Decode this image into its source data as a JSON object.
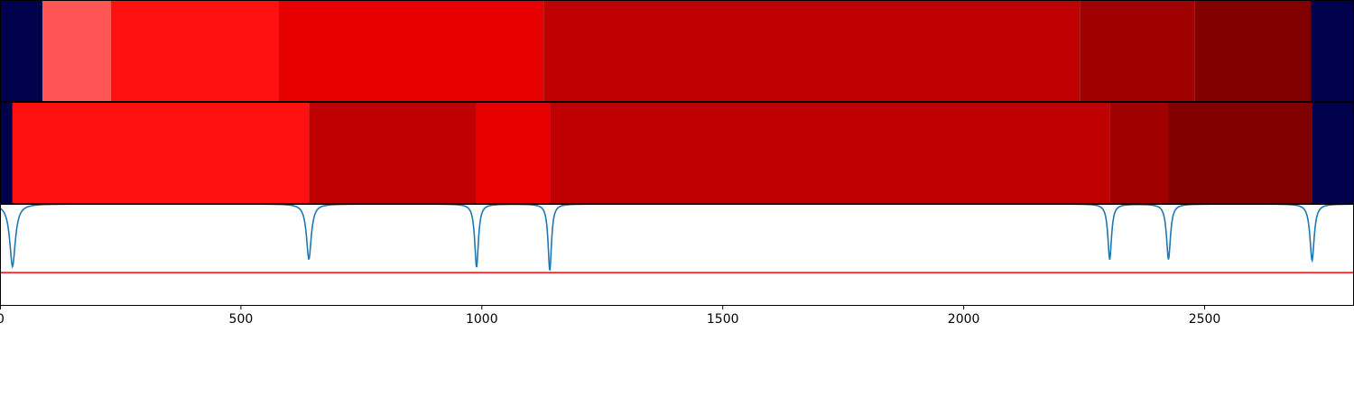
{
  "chart_data": [
    {
      "type": "heatmap",
      "panel": "top-strip",
      "x_range": [
        0,
        2810
      ],
      "segments": [
        {
          "x0": 0,
          "x1": 88,
          "color": "#00004c"
        },
        {
          "x0": 88,
          "x1": 230,
          "color": "#ff5555"
        },
        {
          "x0": 230,
          "x1": 578,
          "color": "#ff1111"
        },
        {
          "x0": 578,
          "x1": 1128,
          "color": "#e60000"
        },
        {
          "x0": 1128,
          "x1": 2241,
          "color": "#c00000"
        },
        {
          "x0": 2241,
          "x1": 2480,
          "color": "#a00000"
        },
        {
          "x0": 2480,
          "x1": 2721,
          "color": "#800000"
        },
        {
          "x0": 2721,
          "x1": 2810,
          "color": "#00004c"
        }
      ]
    },
    {
      "type": "heatmap",
      "panel": "middle-strip",
      "x_range": [
        0,
        2810
      ],
      "segments": [
        {
          "x0": 0,
          "x1": 26,
          "color": "#00004c"
        },
        {
          "x0": 26,
          "x1": 641,
          "color": "#ff1111"
        },
        {
          "x0": 641,
          "x1": 989,
          "color": "#c00000"
        },
        {
          "x0": 989,
          "x1": 1141,
          "color": "#e60000"
        },
        {
          "x0": 1141,
          "x1": 2303,
          "color": "#c00000"
        },
        {
          "x0": 2303,
          "x1": 2425,
          "color": "#a00000"
        },
        {
          "x0": 2425,
          "x1": 2723,
          "color": "#800000"
        },
        {
          "x0": 2723,
          "x1": 2810,
          "color": "#00004c"
        }
      ]
    },
    {
      "type": "line",
      "panel": "bottom-line",
      "x_range": [
        0,
        2810
      ],
      "y_range": [
        0,
        1
      ],
      "xticks": [
        0,
        500,
        1000,
        1500,
        2000,
        2500
      ],
      "xtick_labels": [
        "0",
        "500",
        "1000",
        "1500",
        "2000",
        "2500"
      ],
      "baseline": 1.0,
      "threshold": {
        "y": 0.32,
        "color": "#ff0000"
      },
      "series_color": "#1f77b4",
      "dips": [
        {
          "x": 26,
          "depth": 0.54,
          "width": 40
        },
        {
          "x": 641,
          "depth": 0.48,
          "width": 34
        },
        {
          "x": 989,
          "depth": 0.55,
          "width": 26
        },
        {
          "x": 1141,
          "depth": 0.58,
          "width": 24
        },
        {
          "x": 2303,
          "depth": 0.48,
          "width": 26
        },
        {
          "x": 2425,
          "depth": 0.48,
          "width": 28
        },
        {
          "x": 2723,
          "depth": 0.49,
          "width": 30
        }
      ]
    }
  ]
}
